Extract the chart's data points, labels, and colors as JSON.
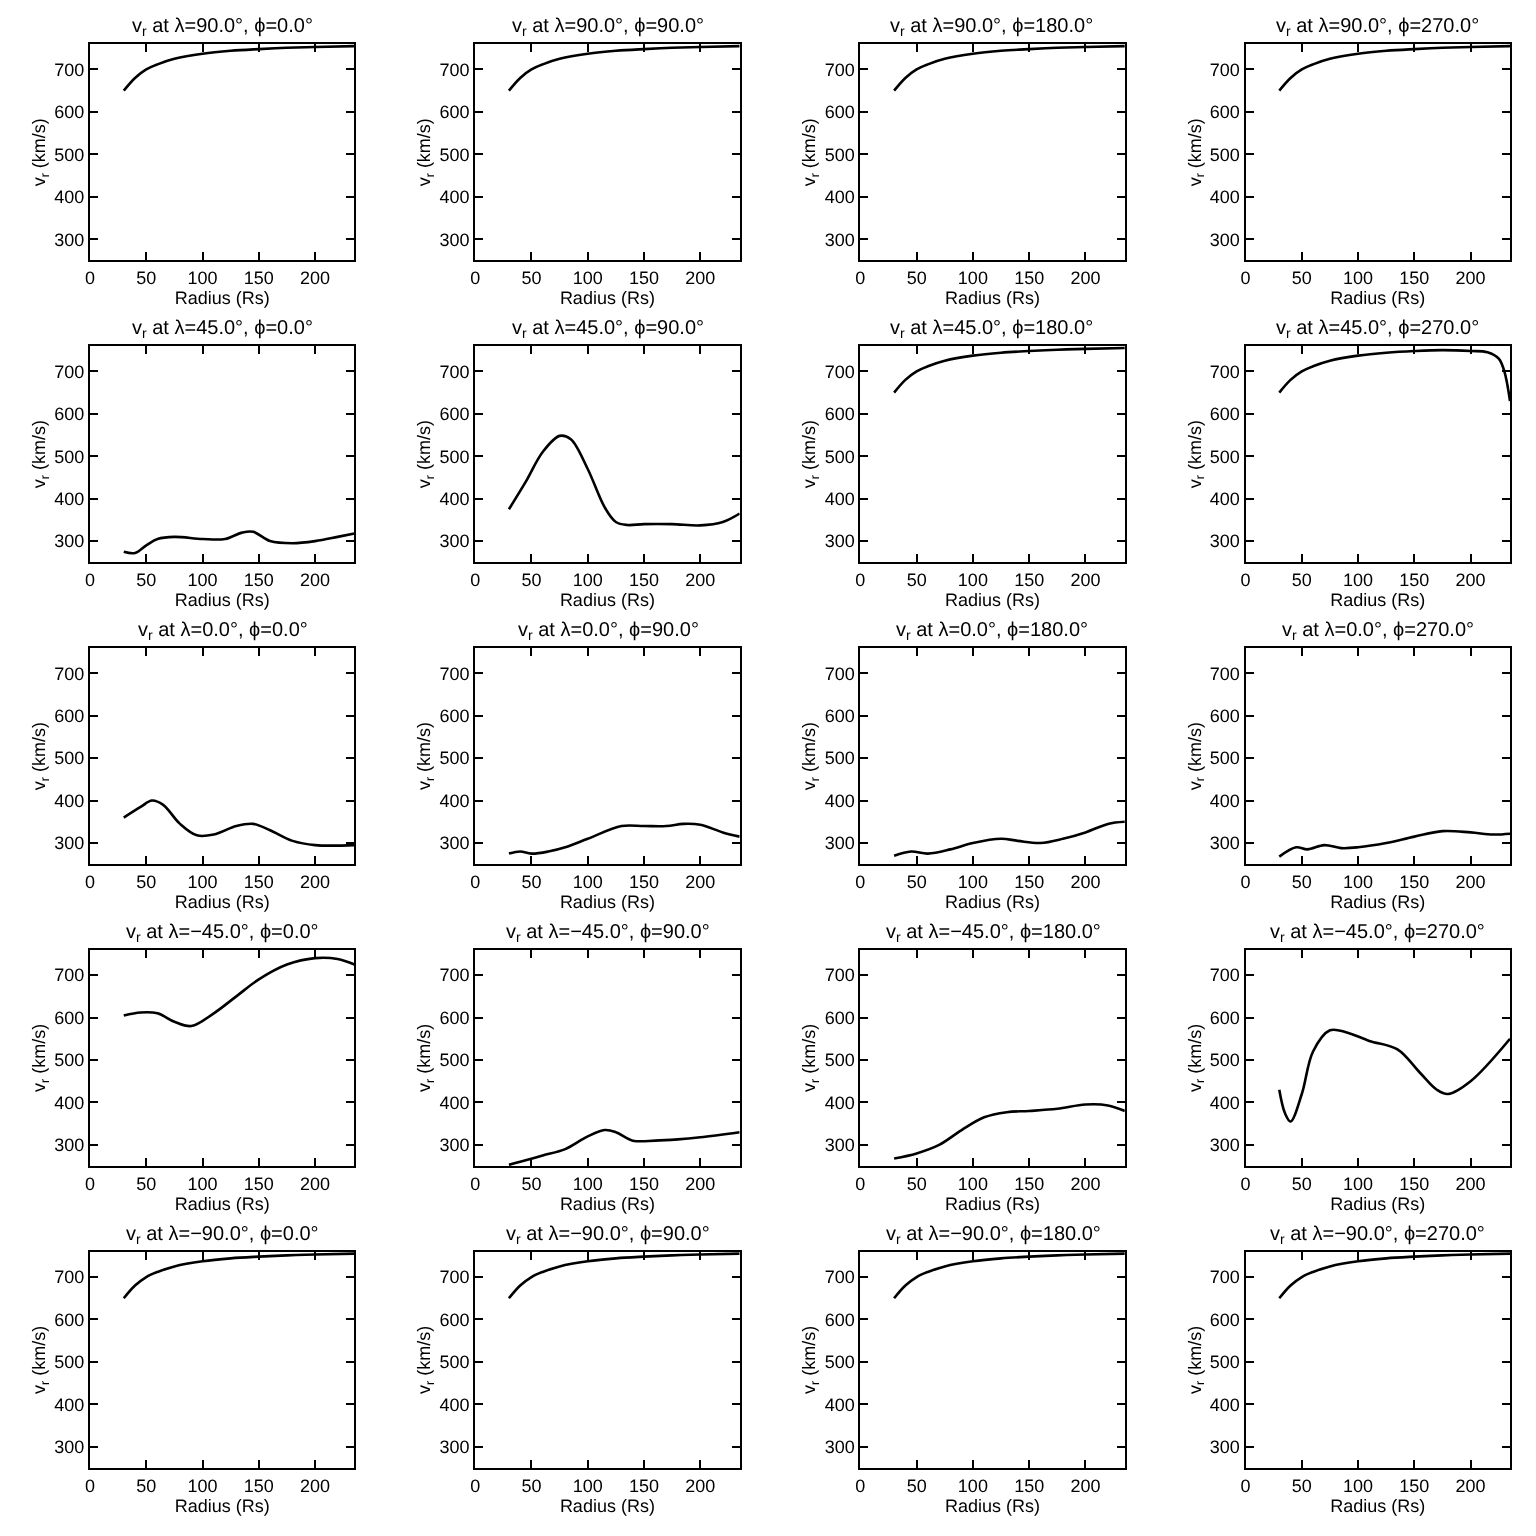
{
  "chart_data": [
    {
      "type": "line",
      "title": "v$_{r}$ at λ=90.0°, ϕ=0.0°",
      "xlabel": "Radius (Rs)",
      "ylabel": "v$_{r}$ (km/s)",
      "color": "#000000",
      "x": [
        30,
        40,
        50,
        60,
        75,
        100,
        125,
        150,
        175,
        200,
        235
      ],
      "values": [
        650,
        680,
        700,
        712,
        725,
        737,
        744,
        748,
        751,
        753,
        755
      ],
      "xlim": [
        0,
        235
      ],
      "ylim": [
        250,
        760
      ],
      "xticks": [
        0,
        50,
        100,
        150,
        200
      ],
      "yticks": [
        300,
        400,
        500,
        600,
        700
      ],
      "grid": false
    },
    {
      "type": "line",
      "title": "v$_{r}$ at λ=90.0°, ϕ=90.0°",
      "xlabel": "Radius (Rs)",
      "ylabel": "v$_{r}$ (km/s)",
      "color": "#000000",
      "x": [
        30,
        40,
        50,
        60,
        75,
        100,
        125,
        150,
        175,
        200,
        235
      ],
      "values": [
        650,
        680,
        700,
        712,
        725,
        737,
        744,
        748,
        751,
        753,
        755
      ],
      "xlim": [
        0,
        235
      ],
      "ylim": [
        250,
        760
      ],
      "xticks": [
        0,
        50,
        100,
        150,
        200
      ],
      "yticks": [
        300,
        400,
        500,
        600,
        700
      ],
      "grid": false
    },
    {
      "type": "line",
      "title": "v$_{r}$ at λ=90.0°, ϕ=180.0°",
      "xlabel": "Radius (Rs)",
      "ylabel": "v$_{r}$ (km/s)",
      "color": "#000000",
      "x": [
        30,
        40,
        50,
        60,
        75,
        100,
        125,
        150,
        175,
        200,
        235
      ],
      "values": [
        650,
        680,
        700,
        712,
        725,
        737,
        744,
        748,
        751,
        753,
        755
      ],
      "xlim": [
        0,
        235
      ],
      "ylim": [
        250,
        760
      ],
      "xticks": [
        0,
        50,
        100,
        150,
        200
      ],
      "yticks": [
        300,
        400,
        500,
        600,
        700
      ],
      "grid": false
    },
    {
      "type": "line",
      "title": "v$_{r}$ at λ=90.0°, ϕ=270.0°",
      "xlabel": "Radius (Rs)",
      "ylabel": "v$_{r}$ (km/s)",
      "color": "#000000",
      "x": [
        30,
        40,
        50,
        60,
        75,
        100,
        125,
        150,
        175,
        200,
        235
      ],
      "values": [
        650,
        680,
        700,
        712,
        725,
        737,
        744,
        748,
        751,
        753,
        755
      ],
      "xlim": [
        0,
        235
      ],
      "ylim": [
        250,
        760
      ],
      "xticks": [
        0,
        50,
        100,
        150,
        200
      ],
      "yticks": [
        300,
        400,
        500,
        600,
        700
      ],
      "grid": false
    },
    {
      "type": "line",
      "title": "v$_{r}$ at λ=45.0°, ϕ=0.0°",
      "xlabel": "Radius (Rs)",
      "ylabel": "v$_{r}$ (km/s)",
      "color": "#000000",
      "x": [
        30,
        40,
        50,
        60,
        75,
        100,
        120,
        135,
        145,
        160,
        180,
        200,
        220,
        235
      ],
      "values": [
        275,
        272,
        290,
        305,
        310,
        305,
        305,
        320,
        322,
        300,
        295,
        300,
        310,
        318
      ],
      "xlim": [
        0,
        235
      ],
      "ylim": [
        250,
        760
      ],
      "xticks": [
        0,
        50,
        100,
        150,
        200
      ],
      "yticks": [
        300,
        400,
        500,
        600,
        700
      ],
      "grid": false
    },
    {
      "type": "line",
      "title": "v$_{r}$ at λ=45.0°, ϕ=90.0°",
      "xlabel": "Radius (Rs)",
      "ylabel": "v$_{r}$ (km/s)",
      "color": "#000000",
      "x": [
        30,
        45,
        60,
        75,
        85,
        100,
        115,
        125,
        135,
        150,
        175,
        200,
        220,
        235
      ],
      "values": [
        375,
        440,
        510,
        548,
        540,
        470,
        380,
        345,
        338,
        340,
        340,
        337,
        345,
        365
      ],
      "xlim": [
        0,
        235
      ],
      "ylim": [
        250,
        760
      ],
      "xticks": [
        0,
        50,
        100,
        150,
        200
      ],
      "yticks": [
        300,
        400,
        500,
        600,
        700
      ],
      "grid": false
    },
    {
      "type": "line",
      "title": "v$_{r}$ at λ=45.0°, ϕ=180.0°",
      "xlabel": "Radius (Rs)",
      "ylabel": "v$_{r}$ (km/s)",
      "color": "#000000",
      "x": [
        30,
        40,
        50,
        60,
        75,
        100,
        125,
        150,
        175,
        200,
        235
      ],
      "values": [
        650,
        680,
        700,
        712,
        725,
        737,
        744,
        748,
        751,
        753,
        755
      ],
      "xlim": [
        0,
        235
      ],
      "ylim": [
        250,
        760
      ],
      "xticks": [
        0,
        50,
        100,
        150,
        200
      ],
      "yticks": [
        300,
        400,
        500,
        600,
        700
      ],
      "grid": false
    },
    {
      "type": "line",
      "title": "v$_{r}$ at λ=45.0°, ϕ=270.0°",
      "xlabel": "Radius (Rs)",
      "ylabel": "v$_{r}$ (km/s)",
      "color": "#000000",
      "x": [
        30,
        40,
        50,
        60,
        75,
        100,
        125,
        150,
        175,
        200,
        215,
        225,
        230,
        235
      ],
      "values": [
        650,
        680,
        700,
        712,
        725,
        737,
        744,
        748,
        750,
        748,
        745,
        730,
        700,
        630
      ],
      "xlim": [
        0,
        235
      ],
      "ylim": [
        250,
        760
      ],
      "xticks": [
        0,
        50,
        100,
        150,
        200
      ],
      "yticks": [
        300,
        400,
        500,
        600,
        700
      ],
      "grid": false
    },
    {
      "type": "line",
      "title": "v$_{r}$ at λ=0.0°, ϕ=0.0°",
      "xlabel": "Radius (Rs)",
      "ylabel": "v$_{r}$ (km/s)",
      "color": "#000000",
      "x": [
        30,
        45,
        55,
        65,
        80,
        95,
        110,
        130,
        145,
        160,
        180,
        200,
        235
      ],
      "values": [
        360,
        385,
        400,
        390,
        345,
        318,
        320,
        340,
        345,
        330,
        305,
        295,
        295
      ],
      "xlim": [
        0,
        235
      ],
      "ylim": [
        250,
        760
      ],
      "xticks": [
        0,
        50,
        100,
        150,
        200
      ],
      "yticks": [
        300,
        400,
        500,
        600,
        700
      ],
      "grid": false
    },
    {
      "type": "line",
      "title": "v$_{r}$ at λ=0.0°, ϕ=90.0°",
      "xlabel": "Radius (Rs)",
      "ylabel": "v$_{r}$ (km/s)",
      "color": "#000000",
      "x": [
        30,
        40,
        50,
        65,
        80,
        100,
        130,
        150,
        170,
        185,
        200,
        220,
        235
      ],
      "values": [
        275,
        280,
        275,
        280,
        290,
        310,
        340,
        340,
        340,
        345,
        343,
        325,
        315
      ],
      "xlim": [
        0,
        235
      ],
      "ylim": [
        250,
        760
      ],
      "xticks": [
        0,
        50,
        100,
        150,
        200
      ],
      "yticks": [
        300,
        400,
        500,
        600,
        700
      ],
      "grid": false
    },
    {
      "type": "line",
      "title": "v$_{r}$ at λ=0.0°, ϕ=180.0°",
      "xlabel": "Radius (Rs)",
      "ylabel": "v$_{r}$ (km/s)",
      "color": "#000000",
      "x": [
        30,
        45,
        60,
        80,
        100,
        125,
        140,
        160,
        180,
        200,
        220,
        235
      ],
      "values": [
        270,
        280,
        275,
        285,
        300,
        310,
        305,
        300,
        310,
        325,
        345,
        350
      ],
      "xlim": [
        0,
        235
      ],
      "ylim": [
        250,
        760
      ],
      "xticks": [
        0,
        50,
        100,
        150,
        200
      ],
      "yticks": [
        300,
        400,
        500,
        600,
        700
      ],
      "grid": false
    },
    {
      "type": "line",
      "title": "v$_{r}$ at λ=0.0°, ϕ=270.0°",
      "xlabel": "Radius (Rs)",
      "ylabel": "v$_{r}$ (km/s)",
      "color": "#000000",
      "x": [
        30,
        45,
        55,
        70,
        85,
        100,
        125,
        150,
        175,
        200,
        220,
        235
      ],
      "values": [
        268,
        290,
        285,
        295,
        288,
        290,
        300,
        315,
        328,
        325,
        320,
        322
      ],
      "xlim": [
        0,
        235
      ],
      "ylim": [
        250,
        760
      ],
      "xticks": [
        0,
        50,
        100,
        150,
        200
      ],
      "yticks": [
        300,
        400,
        500,
        600,
        700
      ],
      "grid": false
    },
    {
      "type": "line",
      "title": "v$_{r}$ at λ=−45.0°, ϕ=0.0°",
      "xlabel": "Radius (Rs)",
      "ylabel": "v$_{r}$ (km/s)",
      "color": "#000000",
      "x": [
        30,
        45,
        60,
        75,
        90,
        110,
        130,
        150,
        175,
        200,
        220,
        235
      ],
      "values": [
        605,
        612,
        610,
        590,
        580,
        610,
        650,
        690,
        725,
        740,
        738,
        725
      ],
      "xlim": [
        0,
        235
      ],
      "ylim": [
        250,
        760
      ],
      "xticks": [
        0,
        50,
        100,
        150,
        200
      ],
      "yticks": [
        300,
        400,
        500,
        600,
        700
      ],
      "grid": false
    },
    {
      "type": "line",
      "title": "v$_{r}$ at λ=−45.0°, ϕ=90.0°",
      "xlabel": "Radius (Rs)",
      "ylabel": "v$_{r}$ (km/s)",
      "color": "#000000",
      "x": [
        30,
        40,
        60,
        80,
        100,
        115,
        125,
        140,
        160,
        180,
        200,
        235
      ],
      "values": [
        253,
        260,
        275,
        290,
        320,
        335,
        330,
        310,
        310,
        313,
        318,
        330
      ],
      "xlim": [
        0,
        235
      ],
      "ylim": [
        250,
        760
      ],
      "xticks": [
        0,
        50,
        100,
        150,
        200
      ],
      "yticks": [
        300,
        400,
        500,
        600,
        700
      ],
      "grid": false
    },
    {
      "type": "line",
      "title": "v$_{r}$ at λ=−45.0°, ϕ=180.0°",
      "xlabel": "Radius (Rs)",
      "ylabel": "v$_{r}$ (km/s)",
      "color": "#000000",
      "x": [
        30,
        50,
        70,
        90,
        110,
        130,
        150,
        175,
        200,
        220,
        235
      ],
      "values": [
        268,
        280,
        300,
        335,
        365,
        377,
        380,
        385,
        395,
        393,
        380
      ],
      "xlim": [
        0,
        235
      ],
      "ylim": [
        250,
        760
      ],
      "xticks": [
        0,
        50,
        100,
        150,
        200
      ],
      "yticks": [
        300,
        400,
        500,
        600,
        700
      ],
      "grid": false
    },
    {
      "type": "line",
      "title": "v$_{r}$ at λ=−45.0°, ϕ=270.0°",
      "xlabel": "Radius (Rs)",
      "ylabel": "v$_{r}$ (km/s)",
      "color": "#000000",
      "x": [
        30,
        35,
        40,
        50,
        60,
        75,
        90,
        110,
        135,
        155,
        170,
        180,
        200,
        235
      ],
      "values": [
        430,
        375,
        355,
        420,
        520,
        570,
        565,
        545,
        525,
        470,
        430,
        420,
        450,
        550
      ],
      "xlim": [
        0,
        235
      ],
      "ylim": [
        250,
        760
      ],
      "xticks": [
        0,
        50,
        100,
        150,
        200
      ],
      "yticks": [
        300,
        400,
        500,
        600,
        700
      ],
      "grid": false
    },
    {
      "type": "line",
      "title": "v$_{r}$ at λ=−90.0°, ϕ=0.0°",
      "xlabel": "Radius (Rs)",
      "ylabel": "v$_{r}$ (km/s)",
      "color": "#000000",
      "x": [
        30,
        40,
        50,
        60,
        75,
        100,
        125,
        150,
        175,
        200,
        235
      ],
      "values": [
        650,
        680,
        700,
        712,
        725,
        737,
        744,
        748,
        751,
        753,
        755
      ],
      "xlim": [
        0,
        235
      ],
      "ylim": [
        250,
        760
      ],
      "xticks": [
        0,
        50,
        100,
        150,
        200
      ],
      "yticks": [
        300,
        400,
        500,
        600,
        700
      ],
      "grid": false
    },
    {
      "type": "line",
      "title": "v$_{r}$ at λ=−90.0°, ϕ=90.0°",
      "xlabel": "Radius (Rs)",
      "ylabel": "v$_{r}$ (km/s)",
      "color": "#000000",
      "x": [
        30,
        40,
        50,
        60,
        75,
        100,
        125,
        150,
        175,
        200,
        235
      ],
      "values": [
        650,
        680,
        700,
        712,
        725,
        737,
        744,
        748,
        751,
        753,
        755
      ],
      "xlim": [
        0,
        235
      ],
      "ylim": [
        250,
        760
      ],
      "xticks": [
        0,
        50,
        100,
        150,
        200
      ],
      "yticks": [
        300,
        400,
        500,
        600,
        700
      ],
      "grid": false
    },
    {
      "type": "line",
      "title": "v$_{r}$ at λ=−90.0°, ϕ=180.0°",
      "xlabel": "Radius (Rs)",
      "ylabel": "v$_{r}$ (km/s)",
      "color": "#000000",
      "x": [
        30,
        40,
        50,
        60,
        75,
        100,
        125,
        150,
        175,
        200,
        235
      ],
      "values": [
        650,
        680,
        700,
        712,
        725,
        737,
        744,
        748,
        751,
        753,
        755
      ],
      "xlim": [
        0,
        235
      ],
      "ylim": [
        250,
        760
      ],
      "xticks": [
        0,
        50,
        100,
        150,
        200
      ],
      "yticks": [
        300,
        400,
        500,
        600,
        700
      ],
      "grid": false
    },
    {
      "type": "line",
      "title": "v$_{r}$ at λ=−90.0°, ϕ=270.0°",
      "xlabel": "Radius (Rs)",
      "ylabel": "v$_{r}$ (km/s)",
      "color": "#000000",
      "x": [
        30,
        40,
        50,
        60,
        75,
        100,
        125,
        150,
        175,
        200,
        235
      ],
      "values": [
        650,
        680,
        700,
        712,
        725,
        737,
        744,
        748,
        751,
        753,
        755
      ],
      "xlim": [
        0,
        235
      ],
      "ylim": [
        250,
        760
      ],
      "xticks": [
        0,
        50,
        100,
        150,
        200
      ],
      "yticks": [
        300,
        400,
        500,
        600,
        700
      ],
      "grid": false
    }
  ]
}
